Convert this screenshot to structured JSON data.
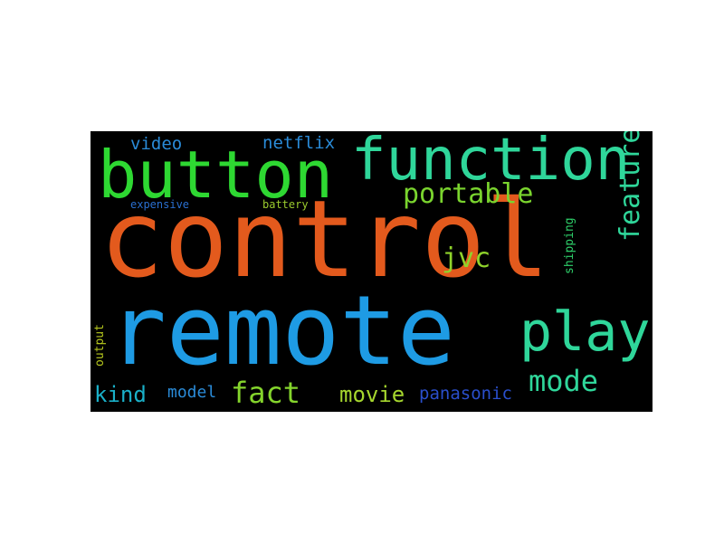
{
  "word_cloud": {
    "words": [
      {
        "text": "control",
        "color": "#e35a1d"
      },
      {
        "text": "remote",
        "color": "#1e9be4"
      },
      {
        "text": "button",
        "color": "#2ed832"
      },
      {
        "text": "function",
        "color": "#2fd69a"
      },
      {
        "text": "play",
        "color": "#2fd69a"
      },
      {
        "text": "portable",
        "color": "#7ad42e"
      },
      {
        "text": "feature",
        "color": "#2fd69a"
      },
      {
        "text": "mode",
        "color": "#2fd69a"
      },
      {
        "text": "fact",
        "color": "#84d42c"
      },
      {
        "text": "movie",
        "color": "#a6d62e"
      },
      {
        "text": "kind",
        "color": "#1ab0c8"
      },
      {
        "text": "model",
        "color": "#2a8bd8"
      },
      {
        "text": "panasonic",
        "color": "#2a4fcc"
      },
      {
        "text": "jvc",
        "color": "#8fd32b"
      },
      {
        "text": "video",
        "color": "#2a8bd8"
      },
      {
        "text": "netflix",
        "color": "#2a8bd8"
      },
      {
        "text": "expensive",
        "color": "#2a6fd0"
      },
      {
        "text": "battery",
        "color": "#9acb2e"
      },
      {
        "text": "shipping",
        "color": "#2ed06a"
      },
      {
        "text": "output",
        "color": "#b6c81e"
      }
    ]
  }
}
